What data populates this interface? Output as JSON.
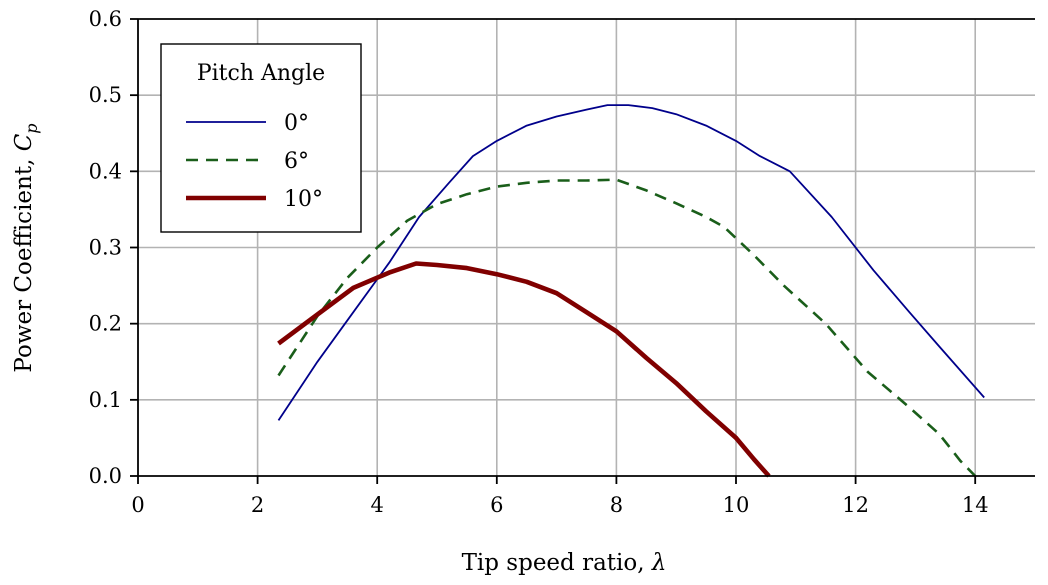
{
  "chart_data": {
    "type": "line",
    "xlabel": "Tip speed ratio, λ",
    "ylabel": "Power Coefficient, Cp",
    "ylabel_main": "Power Coefficient, ",
    "ylabel_symbol": "C",
    "ylabel_subscript": "p",
    "xlabel_main": "Tip speed ratio, ",
    "xlabel_symbol": "λ",
    "xlim": [
      0,
      15
    ],
    "ylim": [
      0,
      0.6
    ],
    "xticks": [
      "0",
      "2",
      "4",
      "6",
      "8",
      "10",
      "12",
      "14"
    ],
    "yticks": [
      "0.0",
      "0.1",
      "0.2",
      "0.3",
      "0.4",
      "0.5",
      "0.6"
    ],
    "grid": true,
    "legend_title": "Pitch Angle",
    "legend_position": "top-left",
    "series": [
      {
        "name": "0°",
        "color": "#00008b",
        "style": "solid",
        "x": [
          2.35,
          3.0,
          3.6,
          4.2,
          4.7,
          5.2,
          5.6,
          6.0,
          6.5,
          7.0,
          7.5,
          7.85,
          8.2,
          8.6,
          9.0,
          9.5,
          10.0,
          10.4,
          10.9,
          11.6,
          12.3,
          12.9,
          13.4,
          14.15
        ],
        "y": [
          0.073,
          0.15,
          0.215,
          0.28,
          0.34,
          0.385,
          0.42,
          0.44,
          0.46,
          0.472,
          0.481,
          0.487,
          0.487,
          0.483,
          0.475,
          0.46,
          0.44,
          0.42,
          0.4,
          0.34,
          0.27,
          0.215,
          0.17,
          0.103
        ]
      },
      {
        "name": "6°",
        "color": "#1a5e1a",
        "style": "dashed",
        "x": [
          2.35,
          3.0,
          3.5,
          4.0,
          4.5,
          5.0,
          5.5,
          6.0,
          6.5,
          7.0,
          7.5,
          8.0,
          8.5,
          9.0,
          9.5,
          9.8,
          10.3,
          10.8,
          11.5,
          12.2,
          12.9,
          13.4,
          13.75,
          14.0
        ],
        "y": [
          0.132,
          0.21,
          0.26,
          0.3,
          0.335,
          0.357,
          0.37,
          0.38,
          0.385,
          0.388,
          0.388,
          0.389,
          0.375,
          0.358,
          0.34,
          0.327,
          0.29,
          0.25,
          0.2,
          0.137,
          0.09,
          0.055,
          0.02,
          0.0
        ]
      },
      {
        "name": "10°",
        "color": "#800000",
        "style": "solid-thick",
        "x": [
          2.35,
          3.0,
          3.6,
          4.2,
          4.65,
          5.0,
          5.5,
          6.0,
          6.5,
          7.0,
          7.5,
          8.0,
          8.5,
          9.0,
          9.5,
          10.0,
          10.3,
          10.55
        ],
        "y": [
          0.174,
          0.212,
          0.247,
          0.267,
          0.279,
          0.277,
          0.273,
          0.265,
          0.255,
          0.24,
          0.215,
          0.19,
          0.155,
          0.122,
          0.085,
          0.05,
          0.022,
          0.0
        ]
      }
    ]
  }
}
